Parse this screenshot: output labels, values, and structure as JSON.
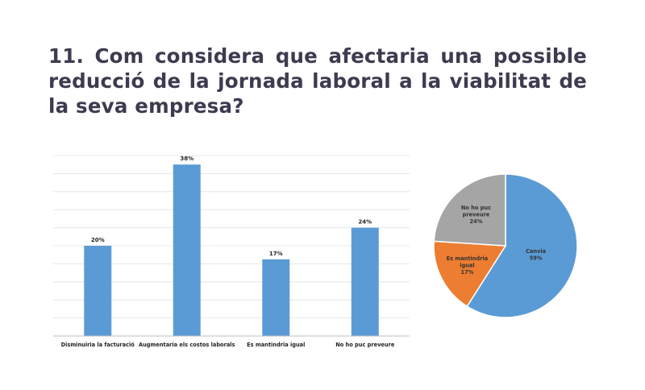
{
  "question": "11. Com considera que afectaria una possible reducció de la jornada laboral a la viabilitat de la seva empresa?",
  "colors": {
    "bar": "#5b9bd5",
    "pie_canvia": "#5b9bd5",
    "pie_igual": "#ed7d31",
    "pie_nosap": "#a5a5a5",
    "grid": "#e0e0e0",
    "axis": "#bfbfbf",
    "title": "#3d3b4f"
  },
  "chart_data": [
    {
      "type": "bar",
      "categories": [
        "Disminuiria la facturació",
        "Augmentaria els costos laborals",
        "Es mantindria igual",
        "No ho puc preveure"
      ],
      "values": [
        20,
        38,
        17,
        24
      ],
      "value_labels": [
        "20%",
        "38%",
        "17%",
        "24%"
      ],
      "ylim": [
        0,
        40
      ],
      "grid": true,
      "title": "",
      "xlabel": "",
      "ylabel": ""
    },
    {
      "type": "pie",
      "labels": [
        "Canvia",
        "Es mantindria igual",
        "No ho puc preveure"
      ],
      "label_lines": [
        [
          "Canvia",
          "59%"
        ],
        [
          "Es mantindria",
          "igual",
          "17%"
        ],
        [
          "No ho puc",
          "preveure",
          "24%"
        ]
      ],
      "values": [
        59,
        17,
        24
      ],
      "start_angle_deg": 0,
      "direction": "clockwise"
    }
  ]
}
